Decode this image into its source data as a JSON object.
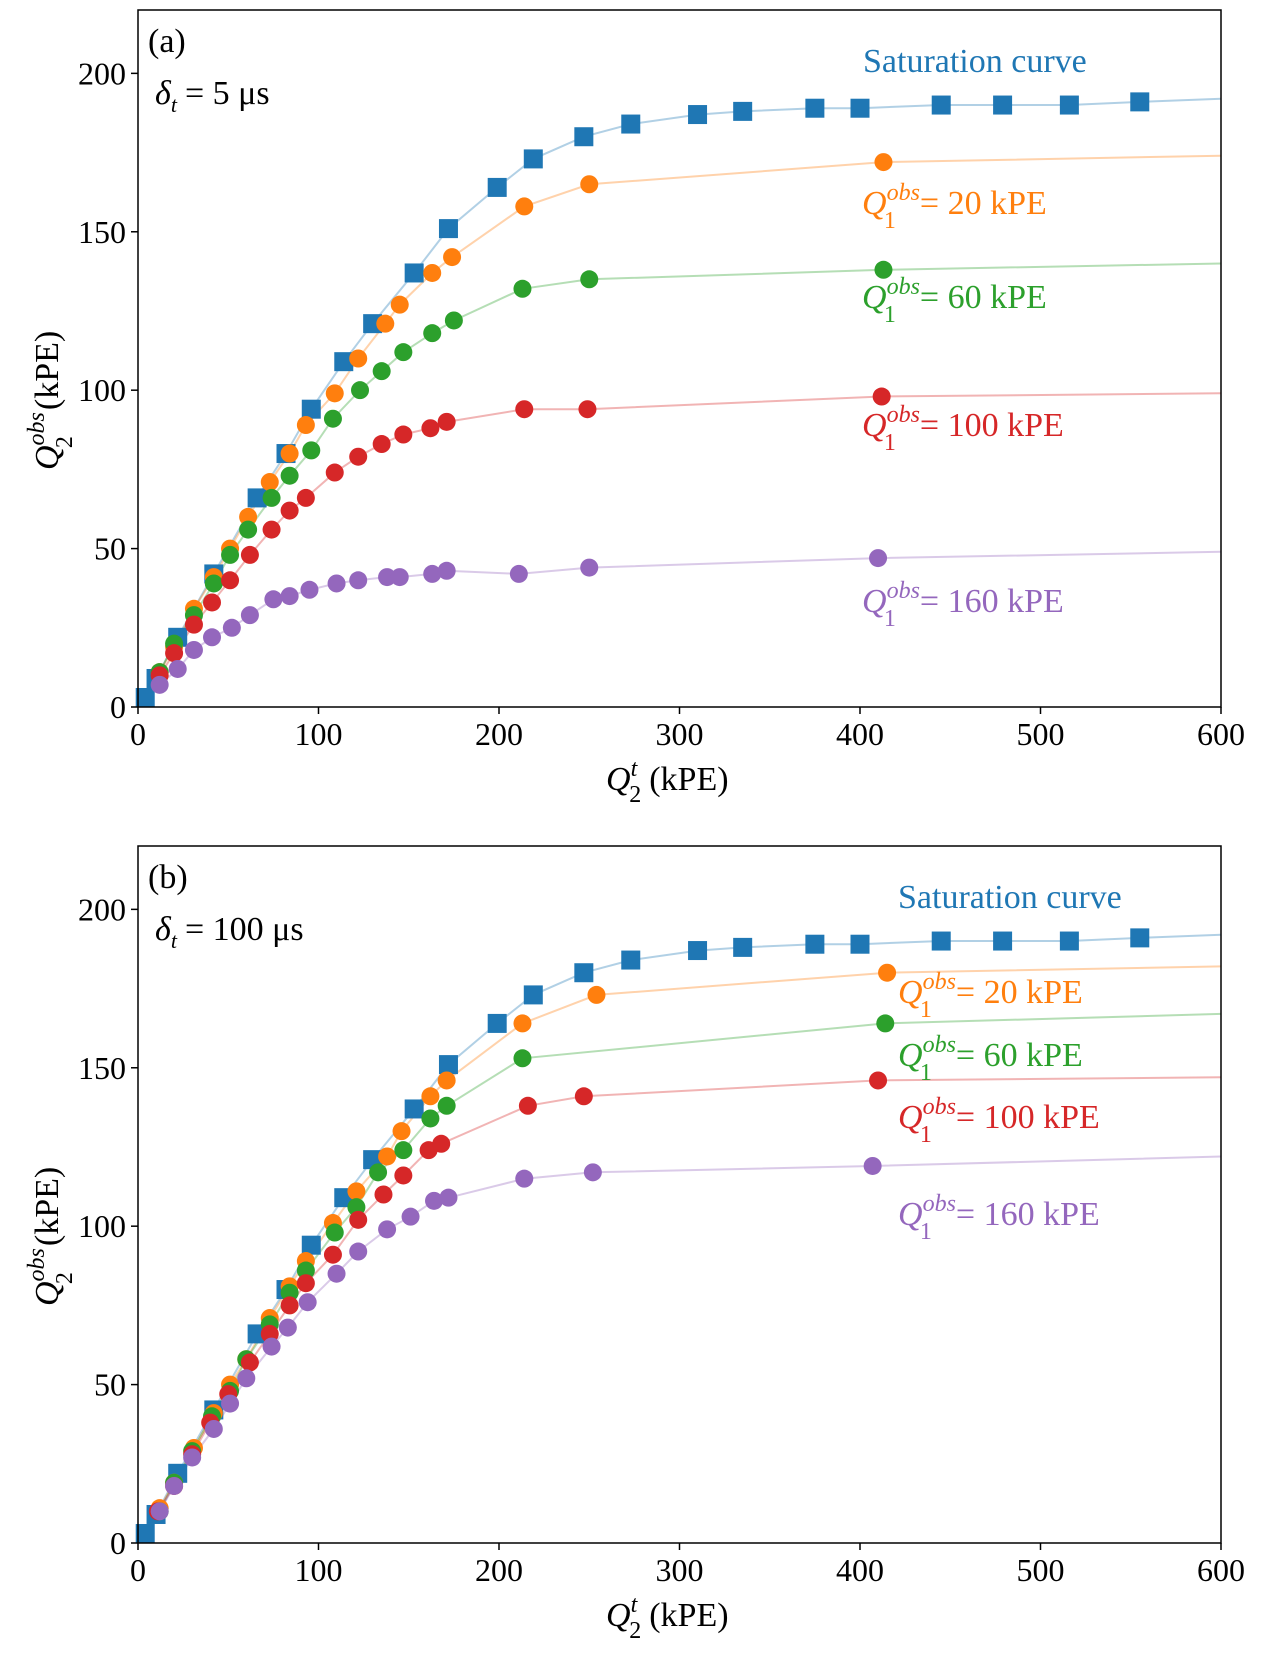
{
  "colors": {
    "saturation": "#1f77b4",
    "q20": "#ff7f0e",
    "q60": "#2ca02c",
    "q100": "#d62728",
    "q160": "#9467bd"
  },
  "chart_data": [
    {
      "type": "scatter",
      "panel_label": "(a)",
      "delta_label": "= 5 μs",
      "xlabel": "(kPE)",
      "ylabel": "(kPE)",
      "xlim": [
        0,
        600
      ],
      "ylim": [
        0,
        220
      ],
      "xticks": [
        0,
        100,
        200,
        300,
        400,
        500,
        600
      ],
      "yticks": [
        0,
        50,
        100,
        150,
        200
      ],
      "saturation_label": "Saturation curve",
      "series": [
        {
          "name": "Saturation curve",
          "color_key": "saturation",
          "marker": "square",
          "x": [
            4,
            10,
            22,
            42,
            66,
            82,
            96,
            114,
            130,
            153,
            172,
            199,
            219,
            247,
            273,
            310,
            335,
            375,
            400,
            445,
            479,
            516,
            555
          ],
          "y": [
            3,
            9,
            22,
            42,
            66,
            80,
            94,
            109,
            121,
            137,
            151,
            164,
            173,
            180,
            184,
            187,
            188,
            189,
            189,
            190,
            190,
            190,
            191
          ],
          "fit_end": [
            600,
            192
          ]
        },
        {
          "name": "Q1obs = 20 kPE",
          "label_value": "= 20 kPE",
          "color_key": "q20",
          "marker": "circle",
          "x": [
            12,
            20,
            31,
            42,
            51,
            61,
            73,
            84,
            93,
            109,
            122,
            137,
            145,
            163,
            174,
            214,
            250,
            413
          ],
          "y": [
            11,
            19,
            31,
            41,
            50,
            60,
            71,
            80,
            89,
            99,
            110,
            121,
            127,
            137,
            142,
            158,
            165,
            172
          ],
          "fit_end": [
            600,
            174
          ]
        },
        {
          "name": "Q1obs = 60 kPE",
          "label_value": "= 60 kPE",
          "color_key": "q60",
          "marker": "circle",
          "x": [
            12,
            20,
            31,
            42,
            51,
            61,
            74,
            84,
            96,
            108,
            123,
            135,
            147,
            163,
            175,
            213,
            250,
            413
          ],
          "y": [
            11,
            20,
            29,
            39,
            48,
            56,
            66,
            73,
            81,
            91,
            100,
            106,
            112,
            118,
            122,
            132,
            135,
            138
          ],
          "fit_end": [
            600,
            140
          ]
        },
        {
          "name": "Q1obs = 100 kPE",
          "label_value": "= 100 kPE",
          "color_key": "q100",
          "marker": "circle",
          "x": [
            12,
            20,
            31,
            41,
            51,
            62,
            74,
            84,
            93,
            109,
            122,
            135,
            147,
            162,
            171,
            214,
            249,
            412
          ],
          "y": [
            10,
            17,
            26,
            33,
            40,
            48,
            56,
            62,
            66,
            74,
            79,
            83,
            86,
            88,
            90,
            94,
            94,
            98
          ],
          "fit_end": [
            600,
            99
          ]
        },
        {
          "name": "Q1obs = 160 kPE",
          "label_value": "= 160 kPE",
          "color_key": "q160",
          "marker": "circle",
          "x": [
            12,
            22,
            31,
            41,
            52,
            62,
            75,
            84,
            95,
            110,
            122,
            138,
            145,
            163,
            171,
            211,
            250,
            410
          ],
          "y": [
            7,
            12,
            18,
            22,
            25,
            29,
            34,
            35,
            37,
            39,
            40,
            41,
            41,
            42,
            43,
            42,
            44,
            47
          ],
          "fit_end": [
            600,
            49
          ]
        }
      ]
    },
    {
      "type": "scatter",
      "panel_label": "(b)",
      "delta_label": "= 100 μs",
      "xlabel": "(kPE)",
      "ylabel": "(kPE)",
      "xlim": [
        0,
        600
      ],
      "ylim": [
        0,
        220
      ],
      "xticks": [
        0,
        100,
        200,
        300,
        400,
        500,
        600
      ],
      "yticks": [
        0,
        50,
        100,
        150,
        200
      ],
      "saturation_label": "Saturation curve",
      "series": [
        {
          "name": "Saturation curve",
          "color_key": "saturation",
          "marker": "square",
          "x": [
            4,
            10,
            22,
            42,
            66,
            82,
            96,
            114,
            130,
            153,
            172,
            199,
            219,
            247,
            273,
            310,
            335,
            375,
            400,
            445,
            479,
            516,
            555
          ],
          "y": [
            3,
            9,
            22,
            42,
            66,
            80,
            94,
            109,
            121,
            137,
            151,
            164,
            173,
            180,
            184,
            187,
            188,
            189,
            189,
            190,
            190,
            190,
            191
          ],
          "fit_end": [
            600,
            192
          ]
        },
        {
          "name": "Q1obs = 20 kPE",
          "label_value": "= 20 kPE",
          "color_key": "q20",
          "marker": "circle",
          "x": [
            12,
            20,
            31,
            42,
            51,
            60,
            73,
            84,
            93,
            108,
            121,
            138,
            146,
            162,
            171,
            213,
            254,
            415
          ],
          "y": [
            11,
            19,
            30,
            41,
            50,
            58,
            71,
            81,
            89,
            101,
            111,
            122,
            130,
            141,
            146,
            164,
            173,
            180
          ],
          "fit_end": [
            600,
            182
          ]
        },
        {
          "name": "Q1obs = 60 kPE",
          "label_value": "= 60 kPE",
          "color_key": "q60",
          "marker": "circle",
          "x": [
            12,
            20,
            30,
            41,
            51,
            60,
            73,
            84,
            93,
            109,
            121,
            133,
            147,
            162,
            171,
            213,
            414
          ],
          "y": [
            10,
            19,
            29,
            40,
            48,
            58,
            69,
            79,
            86,
            98,
            106,
            117,
            124,
            134,
            138,
            153,
            164
          ],
          "fit_end": [
            600,
            167
          ]
        },
        {
          "name": "Q1obs = 100 kPE",
          "label_value": "= 100 kPE",
          "color_key": "q100",
          "marker": "circle",
          "x": [
            11,
            20,
            30,
            40,
            50,
            62,
            73,
            84,
            93,
            108,
            122,
            136,
            147,
            161,
            168,
            216,
            247,
            410
          ],
          "y": [
            10,
            18,
            28,
            38,
            47,
            57,
            66,
            75,
            82,
            91,
            102,
            110,
            116,
            124,
            126,
            138,
            141,
            146
          ],
          "fit_end": [
            600,
            147
          ]
        },
        {
          "name": "Q1obs = 160 kPE",
          "label_value": "= 160 kPE",
          "color_key": "q160",
          "marker": "circle",
          "x": [
            12,
            20,
            30,
            42,
            51,
            60,
            74,
            83,
            94,
            110,
            122,
            138,
            151,
            164,
            172,
            214,
            252,
            407
          ],
          "y": [
            10,
            18,
            27,
            36,
            44,
            52,
            62,
            68,
            76,
            85,
            92,
            99,
            103,
            108,
            109,
            115,
            117,
            119
          ],
          "fit_end": [
            600,
            122
          ]
        }
      ]
    }
  ]
}
